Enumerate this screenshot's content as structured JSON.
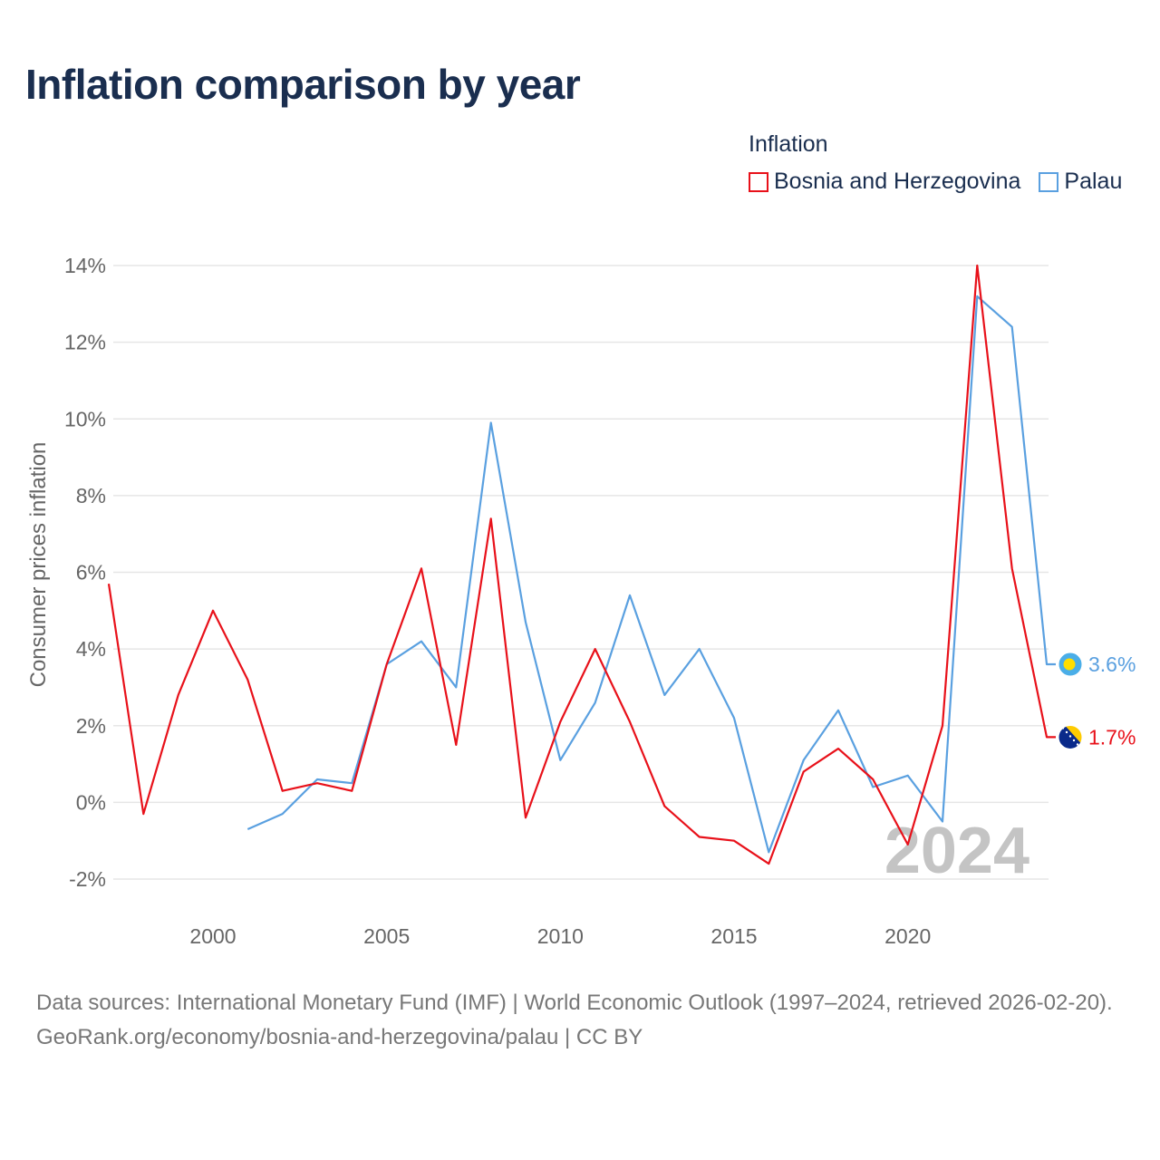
{
  "title": "Inflation comparison by year",
  "legend": {
    "title": "Inflation",
    "items": [
      {
        "label": "Bosnia and Herzegovina",
        "color": "#e8111a"
      },
      {
        "label": "Palau",
        "color": "#5aa0e0"
      }
    ]
  },
  "footer": {
    "sources": "Data sources: International Monetary Fund (IMF) | World Economic Outlook (1997–2024, retrieved 2026-02-20).",
    "url": "GeoRank.org/economy/bosnia-and-herzegovina/palau | CC BY"
  },
  "chart_data": {
    "type": "line",
    "ylabel": "Consumer prices inflation",
    "xlabel": "",
    "ylim": [
      -2,
      14
    ],
    "xlim": [
      1997,
      2024
    ],
    "yticks": [
      -2,
      0,
      2,
      4,
      6,
      8,
      10,
      12,
      14
    ],
    "ytick_labels": [
      "-2%",
      "0%",
      "2%",
      "4%",
      "6%",
      "8%",
      "10%",
      "12%",
      "14%"
    ],
    "xticks": [
      2000,
      2005,
      2010,
      2015,
      2020
    ],
    "xtick_labels": [
      "2000",
      "2005",
      "2010",
      "2015",
      "2020"
    ],
    "watermark_year": "2024",
    "series": [
      {
        "name": "Bosnia and Herzegovina",
        "color": "#e8111a",
        "end_label": "1.7%",
        "flag_icon": "bosnia-flag-icon",
        "x": [
          1997,
          1998,
          1999,
          2000,
          2001,
          2002,
          2003,
          2004,
          2005,
          2006,
          2007,
          2008,
          2009,
          2010,
          2011,
          2012,
          2013,
          2014,
          2015,
          2016,
          2017,
          2018,
          2019,
          2020,
          2021,
          2022,
          2023,
          2024
        ],
        "values": [
          5.7,
          -0.3,
          2.8,
          5.0,
          3.2,
          0.3,
          0.5,
          0.3,
          3.6,
          6.1,
          1.5,
          7.4,
          -0.4,
          2.1,
          4.0,
          2.1,
          -0.1,
          -0.9,
          -1.0,
          -1.6,
          0.8,
          1.4,
          0.6,
          -1.1,
          2.0,
          14.0,
          6.1,
          1.7
        ]
      },
      {
        "name": "Palau",
        "color": "#5aa0e0",
        "end_label": "3.6%",
        "flag_icon": "palau-flag-icon",
        "x": [
          2001,
          2002,
          2003,
          2004,
          2005,
          2006,
          2007,
          2008,
          2009,
          2010,
          2011,
          2012,
          2013,
          2014,
          2015,
          2016,
          2017,
          2018,
          2019,
          2020,
          2021,
          2022,
          2023,
          2024
        ],
        "values": [
          -0.7,
          -0.3,
          0.6,
          0.5,
          3.6,
          4.2,
          3.0,
          9.9,
          4.7,
          1.1,
          2.6,
          5.4,
          2.8,
          4.0,
          2.2,
          -1.3,
          1.1,
          2.4,
          0.4,
          0.7,
          -0.5,
          13.2,
          12.4,
          3.6
        ]
      }
    ]
  }
}
